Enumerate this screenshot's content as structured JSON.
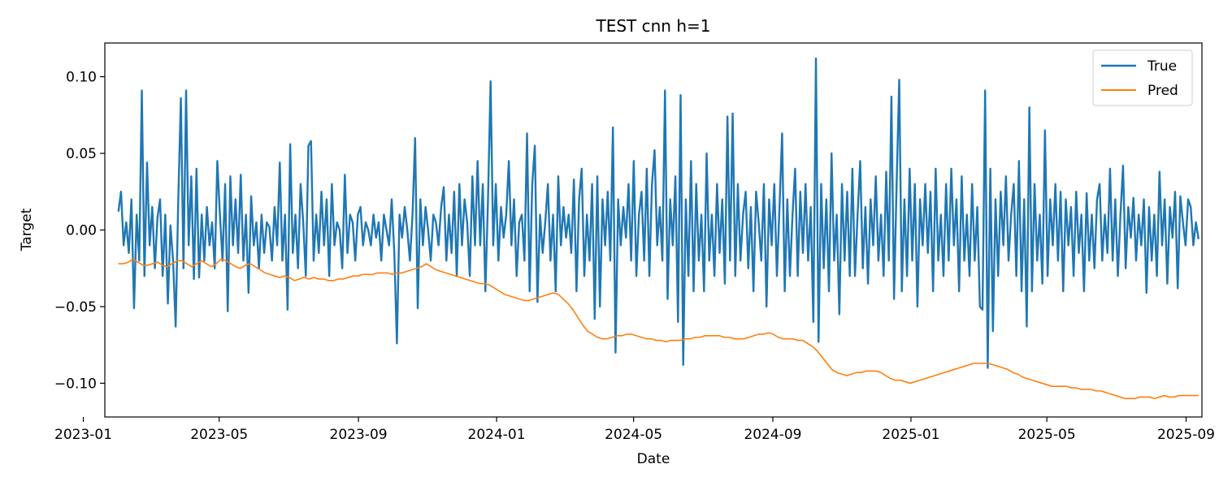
{
  "chart_data": {
    "type": "line",
    "title": "TEST cnn h=1",
    "xlabel": "Date",
    "ylabel": "Target",
    "x_range": [
      "2023-01-20",
      "2025-09-15"
    ],
    "ylim": [
      -0.122,
      0.122
    ],
    "x_ticks": [
      "2023-01-01",
      "2023-05-01",
      "2023-09-01",
      "2024-01-01",
      "2024-05-01",
      "2024-09-01",
      "2025-01-01",
      "2025-05-01",
      "2025-09-01"
    ],
    "x_tick_labels": [
      "2023-01",
      "2023-05",
      "2023-09",
      "2024-01",
      "2024-05",
      "2024-09",
      "2025-01",
      "2025-05",
      "2025-09"
    ],
    "y_ticks": [
      0.1,
      0.05,
      0.0,
      -0.05,
      -0.1
    ],
    "y_tick_labels": [
      "0.10",
      "0.05",
      "0.00",
      "−0.05",
      "−0.10"
    ],
    "grid": false,
    "legend": {
      "position": "top-right",
      "entries": [
        "True",
        "Pred"
      ]
    },
    "colors": {
      "True": "#1f77b4",
      "Pred": "#ff7f0e"
    },
    "series": [
      {
        "name": "True",
        "date_start": "2023-02-01",
        "date_end": "2025-09-12",
        "values": [
          0.012,
          0.025,
          -0.01,
          0.005,
          -0.015,
          0.02,
          -0.051,
          0.01,
          -0.02,
          0.091,
          -0.03,
          0.044,
          -0.01,
          0.015,
          -0.025,
          0.008,
          0.02,
          -0.03,
          0.01,
          -0.048,
          0.003,
          -0.02,
          -0.063,
          0.02,
          0.086,
          -0.025,
          0.091,
          -0.01,
          0.035,
          -0.032,
          0.04,
          -0.031,
          0.01,
          -0.02,
          0.015,
          -0.01,
          0.005,
          -0.025,
          0.045,
          0.01,
          -0.02,
          0.03,
          -0.053,
          0.035,
          -0.01,
          0.02,
          -0.015,
          0.036,
          -0.02,
          0.01,
          -0.041,
          0.022,
          -0.01,
          0.005,
          -0.025,
          0.01,
          -0.015,
          0.005,
          0.002,
          -0.02,
          0.015,
          -0.01,
          0.044,
          -0.02,
          0.01,
          -0.052,
          0.056,
          -0.015,
          0.01,
          -0.025,
          0.03,
          0.005,
          -0.03,
          0.055,
          0.058,
          -0.02,
          0.01,
          -0.015,
          0.025,
          -0.01,
          0.02,
          -0.03,
          0.03,
          -0.01,
          0.005,
          0.0,
          -0.025,
          0.036,
          -0.015,
          0.01,
          0.005,
          -0.02,
          0.01,
          0.015,
          -0.01,
          0.005,
          0.0,
          -0.01,
          0.01,
          -0.005,
          0.005,
          -0.02,
          0.01,
          0.0,
          -0.01,
          0.02,
          -0.015,
          -0.074,
          0.01,
          -0.005,
          0.015,
          0.0,
          -0.02,
          0.01,
          0.06,
          -0.051,
          0.02,
          -0.01,
          0.015,
          0.0,
          -0.02,
          0.01,
          0.005,
          -0.01,
          0.015,
          0.028,
          -0.02,
          0.01,
          -0.015,
          0.025,
          -0.03,
          0.03,
          -0.01,
          0.02,
          0.005,
          -0.03,
          0.035,
          -0.01,
          0.045,
          -0.01,
          0.03,
          -0.04,
          0.02,
          0.097,
          -0.01,
          0.03,
          -0.02,
          0.015,
          -0.005,
          0.01,
          0.045,
          -0.01,
          0.02,
          -0.03,
          0.005,
          0.01,
          -0.02,
          0.063,
          -0.04,
          0.03,
          0.055,
          -0.047,
          0.01,
          -0.015,
          0.005,
          0.03,
          -0.02,
          0.01,
          -0.04,
          0.035,
          -0.01,
          0.015,
          -0.005,
          0.01,
          -0.015,
          0.033,
          -0.04,
          0.02,
          0.04,
          -0.03,
          0.01,
          -0.02,
          0.03,
          -0.058,
          0.035,
          -0.05,
          0.02,
          -0.01,
          0.025,
          -0.02,
          0.067,
          -0.08,
          0.02,
          -0.01,
          0.015,
          -0.005,
          0.03,
          -0.02,
          0.045,
          -0.03,
          0.01,
          0.025,
          -0.02,
          0.04,
          -0.03,
          0.03,
          0.052,
          -0.01,
          0.015,
          -0.02,
          0.091,
          -0.045,
          0.02,
          -0.01,
          0.035,
          -0.06,
          0.088,
          -0.088,
          0.02,
          -0.03,
          0.045,
          -0.04,
          0.03,
          -0.02,
          0.01,
          -0.04,
          0.05,
          -0.02,
          0.01,
          -0.03,
          0.03,
          -0.015,
          0.02,
          -0.035,
          0.074,
          -0.02,
          0.076,
          -0.03,
          0.03,
          -0.02,
          0.01,
          0.025,
          -0.025,
          0.015,
          -0.04,
          0.025,
          0.005,
          -0.02,
          0.03,
          -0.05,
          0.02,
          -0.01,
          0.03,
          -0.03,
          0.015,
          0.063,
          -0.04,
          0.02,
          -0.03,
          0.01,
          0.04,
          -0.03,
          0.025,
          -0.015,
          0.03,
          -0.02,
          0.015,
          -0.06,
          0.112,
          -0.073,
          0.03,
          -0.025,
          0.02,
          -0.04,
          0.05,
          -0.02,
          0.01,
          -0.055,
          0.03,
          -0.02,
          0.025,
          -0.03,
          0.04,
          -0.03,
          0.01,
          0.045,
          -0.025,
          0.015,
          -0.035,
          0.02,
          -0.01,
          0.035,
          -0.02,
          0.01,
          -0.03,
          0.038,
          -0.02,
          0.087,
          -0.045,
          0.03,
          0.098,
          -0.04,
          0.02,
          -0.03,
          0.04,
          -0.02,
          0.03,
          -0.05,
          0.02,
          -0.01,
          0.03,
          -0.015,
          0.025,
          -0.04,
          0.04,
          -0.02,
          0.01,
          -0.03,
          0.03,
          -0.02,
          0.04,
          -0.01,
          0.02,
          -0.04,
          0.035,
          -0.02,
          0.01,
          -0.03,
          0.03,
          -0.02,
          0.015,
          -0.05,
          -0.052,
          0.091,
          -0.09,
          0.04,
          -0.066,
          0.02,
          -0.03,
          0.025,
          -0.01,
          0.035,
          -0.02,
          0.01,
          0.03,
          -0.03,
          0.045,
          -0.04,
          0.02,
          -0.063,
          0.08,
          -0.04,
          0.03,
          -0.02,
          0.01,
          -0.035,
          0.065,
          -0.03,
          0.02,
          -0.01,
          0.03,
          -0.02,
          0.025,
          -0.04,
          0.02,
          -0.01,
          0.015,
          -0.03,
          0.025,
          -0.015,
          0.01,
          -0.04,
          0.024,
          -0.02,
          0.01,
          -0.025,
          0.02,
          0.03,
          -0.02,
          0.01,
          -0.015,
          0.04,
          -0.02,
          0.02,
          -0.03,
          0.01,
          0.042,
          -0.025,
          0.015,
          -0.005,
          0.021,
          -0.02,
          0.01,
          -0.01,
          0.02,
          -0.041,
          0.015,
          -0.02,
          0.01,
          -0.03,
          0.038,
          -0.01,
          0.02,
          -0.035,
          0.015,
          -0.005,
          0.025,
          -0.038,
          0.022,
          0.005,
          -0.01,
          0.02,
          0.015,
          -0.01,
          0.005,
          -0.006
        ]
      },
      {
        "name": "Pred",
        "date_start": "2023-02-01",
        "date_end": "2025-09-12",
        "values": [
          -0.022,
          -0.022,
          -0.021,
          -0.019,
          -0.021,
          -0.023,
          -0.023,
          -0.022,
          -0.021,
          -0.023,
          -0.024,
          -0.022,
          -0.02,
          -0.02,
          -0.022,
          -0.024,
          -0.022,
          -0.02,
          -0.022,
          -0.024,
          -0.022,
          -0.019,
          -0.02,
          -0.022,
          -0.024,
          -0.025,
          -0.023,
          -0.022,
          -0.024,
          -0.026,
          -0.028,
          -0.029,
          -0.03,
          -0.031,
          -0.03,
          -0.031,
          -0.033,
          -0.032,
          -0.031,
          -0.032,
          -0.031,
          -0.032,
          -0.032,
          -0.033,
          -0.033,
          -0.032,
          -0.032,
          -0.031,
          -0.03,
          -0.03,
          -0.029,
          -0.029,
          -0.029,
          -0.028,
          -0.028,
          -0.028,
          -0.029,
          -0.028,
          -0.028,
          -0.027,
          -0.026,
          -0.025,
          -0.024,
          -0.022,
          -0.024,
          -0.026,
          -0.027,
          -0.028,
          -0.029,
          -0.03,
          -0.031,
          -0.032,
          -0.033,
          -0.034,
          -0.035,
          -0.035,
          -0.036,
          -0.038,
          -0.04,
          -0.042,
          -0.043,
          -0.044,
          -0.045,
          -0.046,
          -0.046,
          -0.045,
          -0.044,
          -0.043,
          -0.042,
          -0.041,
          -0.042,
          -0.045,
          -0.048,
          -0.052,
          -0.057,
          -0.062,
          -0.066,
          -0.068,
          -0.07,
          -0.071,
          -0.071,
          -0.07,
          -0.069,
          -0.069,
          -0.068,
          -0.068,
          -0.069,
          -0.07,
          -0.071,
          -0.071,
          -0.072,
          -0.072,
          -0.073,
          -0.072,
          -0.072,
          -0.072,
          -0.071,
          -0.071,
          -0.07,
          -0.07,
          -0.069,
          -0.069,
          -0.069,
          -0.069,
          -0.07,
          -0.07,
          -0.071,
          -0.071,
          -0.071,
          -0.07,
          -0.069,
          -0.068,
          -0.068,
          -0.067,
          -0.068,
          -0.07,
          -0.071,
          -0.071,
          -0.071,
          -0.072,
          -0.072,
          -0.074,
          -0.076,
          -0.079,
          -0.083,
          -0.087,
          -0.091,
          -0.093,
          -0.094,
          -0.095,
          -0.094,
          -0.093,
          -0.093,
          -0.092,
          -0.092,
          -0.092,
          -0.093,
          -0.095,
          -0.097,
          -0.098,
          -0.098,
          -0.099,
          -0.1,
          -0.099,
          -0.098,
          -0.097,
          -0.096,
          -0.095,
          -0.094,
          -0.093,
          -0.092,
          -0.091,
          -0.09,
          -0.089,
          -0.088,
          -0.087,
          -0.087,
          -0.087,
          -0.087,
          -0.088,
          -0.089,
          -0.09,
          -0.091,
          -0.093,
          -0.094,
          -0.096,
          -0.097,
          -0.098,
          -0.099,
          -0.1,
          -0.101,
          -0.102,
          -0.102,
          -0.102,
          -0.102,
          -0.103,
          -0.103,
          -0.104,
          -0.104,
          -0.104,
          -0.105,
          -0.105,
          -0.106,
          -0.107,
          -0.108,
          -0.109,
          -0.11,
          -0.11,
          -0.11,
          -0.109,
          -0.109,
          -0.109,
          -0.11,
          -0.109,
          -0.108,
          -0.109,
          -0.109,
          -0.108,
          -0.108,
          -0.108,
          -0.108,
          -0.108
        ]
      }
    ]
  }
}
